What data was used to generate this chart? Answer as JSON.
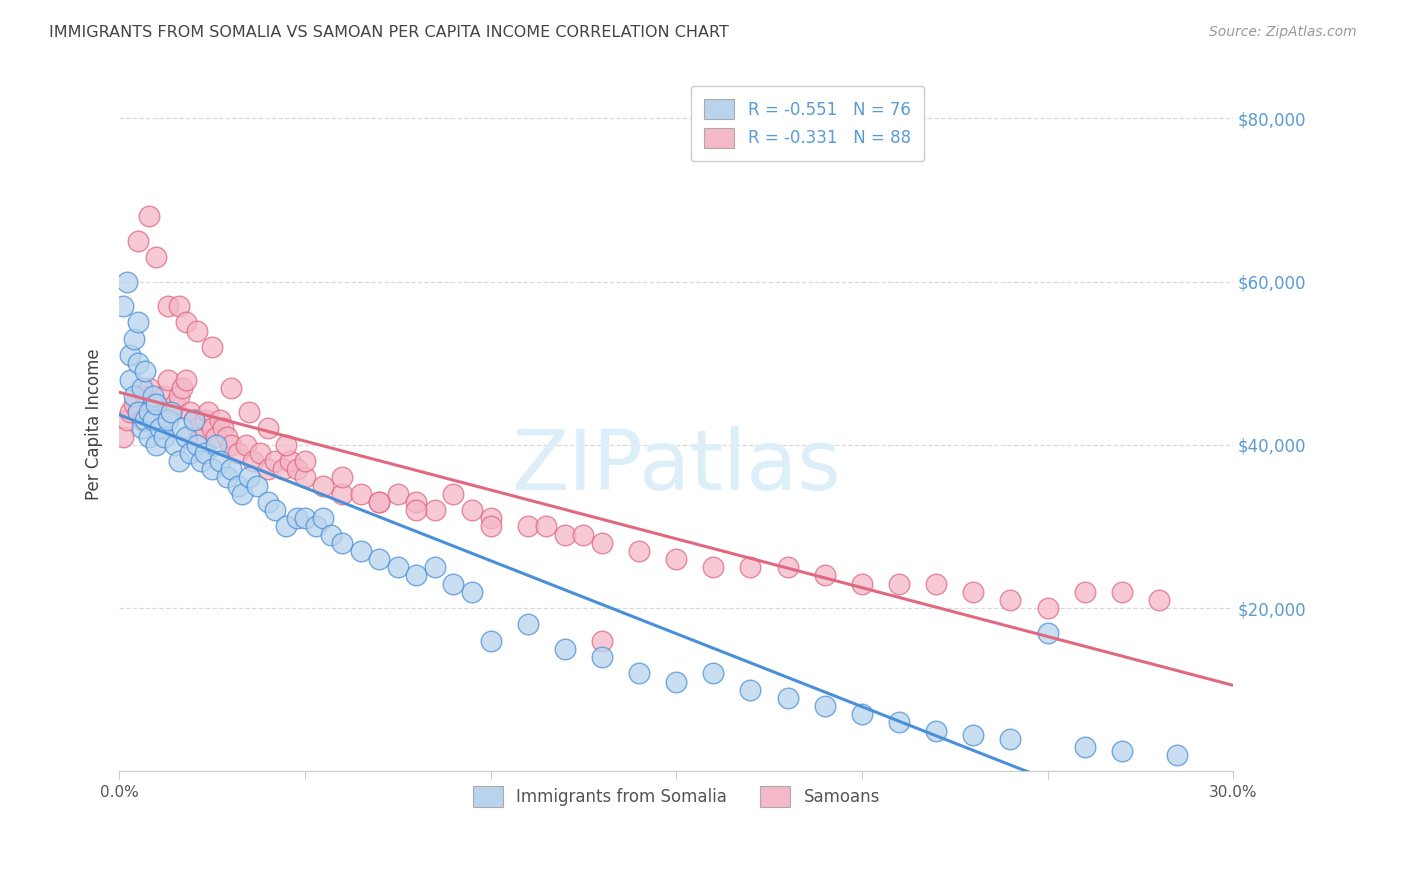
{
  "title": "IMMIGRANTS FROM SOMALIA VS SAMOAN PER CAPITA INCOME CORRELATION CHART",
  "source": "Source: ZipAtlas.com",
  "ylabel": "Per Capita Income",
  "xlim": [
    0.0,
    0.3
  ],
  "ylim": [
    0,
    85000
  ],
  "yticks": [
    0,
    20000,
    40000,
    60000,
    80000
  ],
  "xticks": [
    0.0,
    0.05,
    0.1,
    0.15,
    0.2,
    0.25,
    0.3
  ],
  "ytick_right_labels": [
    "",
    "$20,000",
    "$40,000",
    "$60,000",
    "$80,000"
  ],
  "series1_label": "Immigrants from Somalia",
  "series1_R": "-0.551",
  "series1_N": "76",
  "series1_scatter_color": "#b8d4ed",
  "series1_line_color": "#4a90d9",
  "series2_label": "Samoans",
  "series2_R": "-0.331",
  "series2_N": "88",
  "series2_scatter_color": "#f4b8c8",
  "series2_line_color": "#e06880",
  "background": "#ffffff",
  "grid_color": "#d0d0d0",
  "text_color": "#444444",
  "right_axis_color": "#5b9bd5",
  "source_color": "#999999",
  "watermark_color": "#dceef8",
  "series1_x": [
    0.001,
    0.002,
    0.003,
    0.003,
    0.004,
    0.004,
    0.005,
    0.005,
    0.005,
    0.006,
    0.006,
    0.007,
    0.007,
    0.008,
    0.008,
    0.009,
    0.009,
    0.01,
    0.01,
    0.011,
    0.012,
    0.013,
    0.014,
    0.015,
    0.016,
    0.017,
    0.018,
    0.019,
    0.02,
    0.021,
    0.022,
    0.023,
    0.025,
    0.026,
    0.027,
    0.029,
    0.03,
    0.032,
    0.033,
    0.035,
    0.037,
    0.04,
    0.042,
    0.045,
    0.048,
    0.05,
    0.053,
    0.055,
    0.057,
    0.06,
    0.065,
    0.07,
    0.075,
    0.08,
    0.085,
    0.09,
    0.095,
    0.1,
    0.11,
    0.12,
    0.13,
    0.14,
    0.15,
    0.16,
    0.17,
    0.18,
    0.19,
    0.2,
    0.21,
    0.22,
    0.23,
    0.24,
    0.25,
    0.26,
    0.27,
    0.285
  ],
  "series1_y": [
    57000,
    60000,
    48000,
    51000,
    46000,
    53000,
    44000,
    50000,
    55000,
    42000,
    47000,
    43000,
    49000,
    44000,
    41000,
    43000,
    46000,
    40000,
    45000,
    42000,
    41000,
    43000,
    44000,
    40000,
    38000,
    42000,
    41000,
    39000,
    43000,
    40000,
    38000,
    39000,
    37000,
    40000,
    38000,
    36000,
    37000,
    35000,
    34000,
    36000,
    35000,
    33000,
    32000,
    30000,
    31000,
    31000,
    30000,
    31000,
    29000,
    28000,
    27000,
    26000,
    25000,
    24000,
    25000,
    23000,
    22000,
    16000,
    18000,
    15000,
    14000,
    12000,
    11000,
    12000,
    10000,
    9000,
    8000,
    7000,
    6000,
    5000,
    4500,
    4000,
    17000,
    3000,
    2500,
    2000
  ],
  "series2_x": [
    0.001,
    0.002,
    0.003,
    0.004,
    0.005,
    0.006,
    0.007,
    0.008,
    0.009,
    0.01,
    0.011,
    0.012,
    0.013,
    0.014,
    0.015,
    0.016,
    0.017,
    0.018,
    0.019,
    0.02,
    0.021,
    0.022,
    0.023,
    0.024,
    0.025,
    0.026,
    0.027,
    0.028,
    0.029,
    0.03,
    0.032,
    0.034,
    0.036,
    0.038,
    0.04,
    0.042,
    0.044,
    0.046,
    0.048,
    0.05,
    0.055,
    0.06,
    0.065,
    0.07,
    0.075,
    0.08,
    0.085,
    0.09,
    0.095,
    0.1,
    0.11,
    0.115,
    0.12,
    0.125,
    0.13,
    0.14,
    0.15,
    0.16,
    0.17,
    0.18,
    0.19,
    0.2,
    0.21,
    0.22,
    0.23,
    0.24,
    0.25,
    0.26,
    0.27,
    0.28,
    0.005,
    0.008,
    0.01,
    0.013,
    0.016,
    0.018,
    0.021,
    0.025,
    0.03,
    0.035,
    0.04,
    0.045,
    0.05,
    0.06,
    0.07,
    0.08,
    0.1,
    0.13
  ],
  "series2_y": [
    41000,
    43000,
    44000,
    45000,
    44000,
    43000,
    46000,
    47000,
    45000,
    44000,
    43000,
    46000,
    48000,
    44000,
    45000,
    46000,
    47000,
    48000,
    44000,
    43000,
    42000,
    41000,
    43000,
    44000,
    42000,
    41000,
    43000,
    42000,
    41000,
    40000,
    39000,
    40000,
    38000,
    39000,
    37000,
    38000,
    37000,
    38000,
    37000,
    36000,
    35000,
    34000,
    34000,
    33000,
    34000,
    33000,
    32000,
    34000,
    32000,
    31000,
    30000,
    30000,
    29000,
    29000,
    28000,
    27000,
    26000,
    25000,
    25000,
    25000,
    24000,
    23000,
    23000,
    23000,
    22000,
    21000,
    20000,
    22000,
    22000,
    21000,
    65000,
    68000,
    63000,
    57000,
    57000,
    55000,
    54000,
    52000,
    47000,
    44000,
    42000,
    40000,
    38000,
    36000,
    33000,
    32000,
    30000,
    16000
  ]
}
